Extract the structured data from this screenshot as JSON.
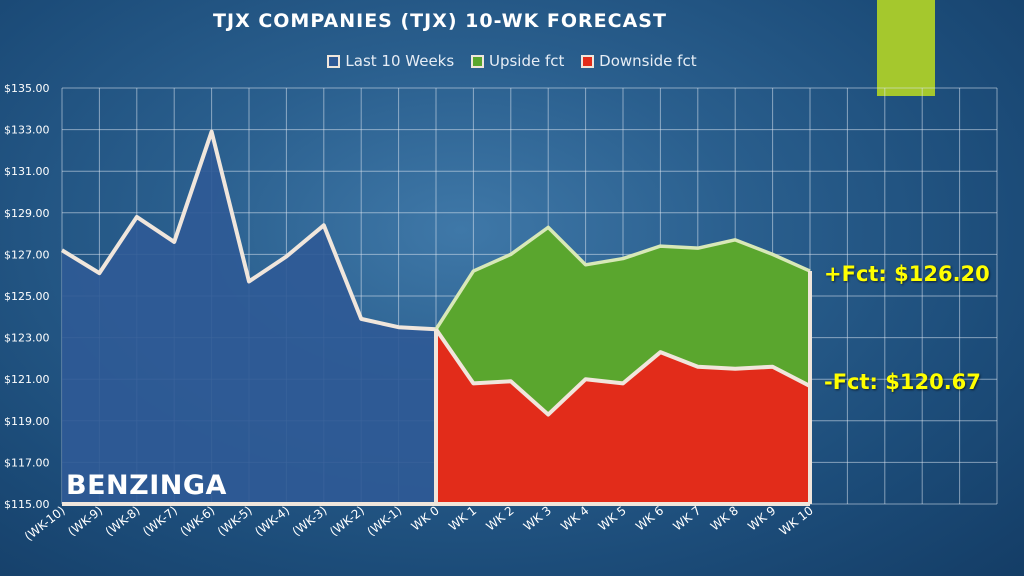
{
  "title": "TJX COMPANIES (TJX) 10-WK FORECAST",
  "brand": "BENZINGA",
  "colors": {
    "background": "#1f5283",
    "accent": "#a5c82d",
    "history_fill": "#2f5a96",
    "upside_fill": "#5aa62e",
    "downside_fill": "#e22c1a",
    "line": "#f0e6dc",
    "label_text": "#ffff00"
  },
  "legend": {
    "items": [
      {
        "label": "Last 10 Weeks",
        "color": "#2f5a96"
      },
      {
        "label": "Upside fct",
        "color": "#5aa62e"
      },
      {
        "label": "Downside fct",
        "color": "#e22c1a"
      }
    ]
  },
  "annotations": {
    "upside": "+Fct: $126.20",
    "downside": "-Fct: $120.67"
  },
  "chart_data": {
    "type": "area",
    "title": "TJX COMPANIES (TJX) 10-WK FORECAST",
    "categories": [
      "(WK-10)",
      "(WK-9)",
      "(WK-8)",
      "(WK-7)",
      "(WK-6)",
      "(WK-5)",
      "(WK-4)",
      "(WK-3)",
      "(WK-2)",
      "(WK-1)",
      "WK 0",
      "WK 1",
      "WK 2",
      "WK 3",
      "WK 4",
      "WK 5",
      "WK 6",
      "WK 7",
      "WK 8",
      "WK 9",
      "WK 10"
    ],
    "extra_grid_columns": 5,
    "ylim": [
      115,
      135
    ],
    "yticks": [
      "$115.00",
      "$117.00",
      "$119.00",
      "$121.00",
      "$123.00",
      "$125.00",
      "$127.00",
      "$129.00",
      "$131.00",
      "$133.00",
      "$135.00"
    ],
    "grid": true,
    "legend_position": "top",
    "series": [
      {
        "name": "Last 10 Weeks",
        "values": [
          127.2,
          126.1,
          128.8,
          127.6,
          132.9,
          125.7,
          126.9,
          128.4,
          123.9,
          123.5,
          123.4,
          null,
          null,
          null,
          null,
          null,
          null,
          null,
          null,
          null,
          null
        ]
      },
      {
        "name": "Upside fct",
        "values": [
          null,
          null,
          null,
          null,
          null,
          null,
          null,
          null,
          null,
          null,
          123.4,
          126.2,
          127.0,
          128.3,
          126.5,
          126.8,
          127.4,
          127.3,
          127.7,
          127.0,
          126.2
        ]
      },
      {
        "name": "Downside fct",
        "values": [
          null,
          null,
          null,
          null,
          null,
          null,
          null,
          null,
          null,
          null,
          123.4,
          120.8,
          120.9,
          119.3,
          121.0,
          120.8,
          122.3,
          121.6,
          121.5,
          121.6,
          120.67
        ]
      }
    ]
  }
}
